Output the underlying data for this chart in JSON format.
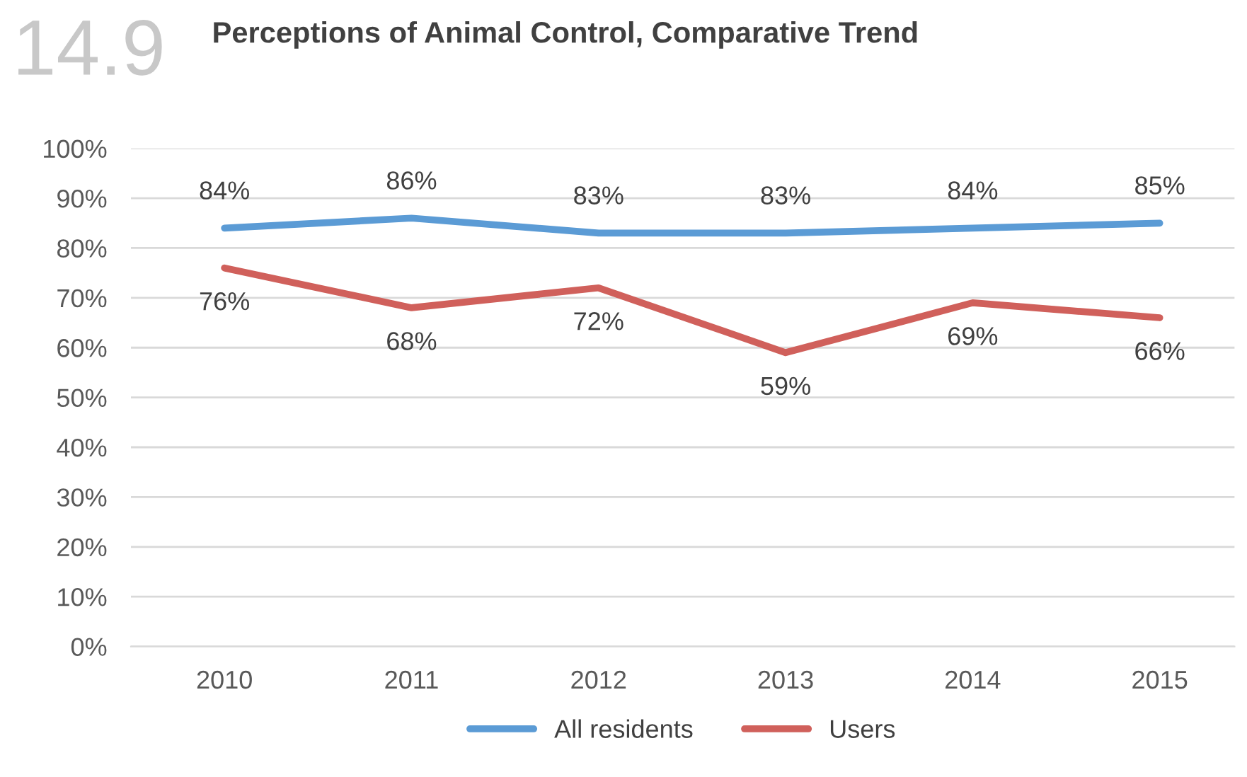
{
  "chart_data": {
    "type": "line",
    "title": "Perceptions of Animal Control, Comparative Trend",
    "annotations": [
      "14.9"
    ],
    "categories": [
      "2010",
      "2011",
      "2012",
      "2013",
      "2014",
      "2015"
    ],
    "series": [
      {
        "name": "All residents",
        "color": "#5b9bd5",
        "values": [
          84,
          86,
          83,
          83,
          84,
          85
        ],
        "value_labels": [
          "84%",
          "86%",
          "83%",
          "83%",
          "84%",
          "85%"
        ]
      },
      {
        "name": "Users",
        "color": "#d0605b",
        "values": [
          76,
          68,
          72,
          59,
          69,
          66
        ],
        "value_labels": [
          "76%",
          "68%",
          "72%",
          "59%",
          "69%",
          "66%"
        ]
      }
    ],
    "ylim": [
      0,
      100
    ],
    "yticks": [
      {
        "value": 0,
        "label": "0%"
      },
      {
        "value": 10,
        "label": "10%"
      },
      {
        "value": 20,
        "label": "20%"
      },
      {
        "value": 30,
        "label": "30%"
      },
      {
        "value": 40,
        "label": "40%"
      },
      {
        "value": 50,
        "label": "50%"
      },
      {
        "value": 60,
        "label": "60%"
      },
      {
        "value": 70,
        "label": "70%"
      },
      {
        "value": 80,
        "label": "80%"
      },
      {
        "value": 90,
        "label": "90%"
      },
      {
        "value": 100,
        "label": "100%"
      }
    ],
    "grid": "y",
    "legend": "bottom",
    "marker": "none",
    "line_style": "solid"
  }
}
